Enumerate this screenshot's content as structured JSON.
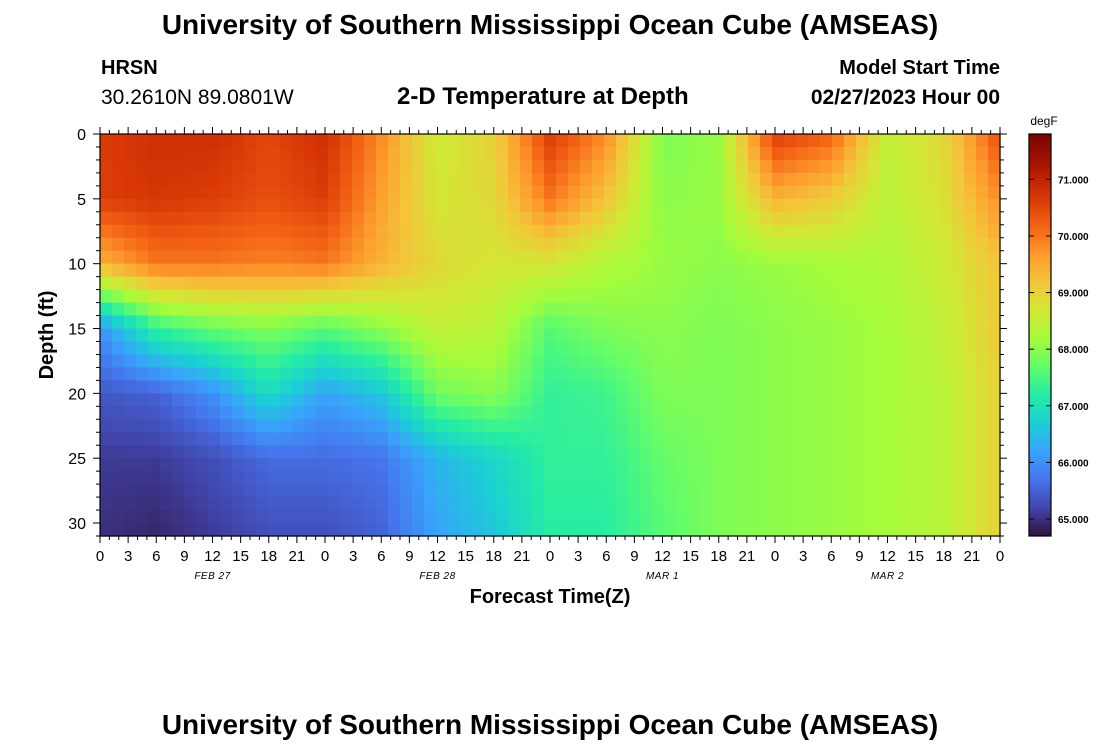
{
  "header": {
    "title": "University of Southern Mississippi Ocean Cube (AMSEAS)",
    "station": "HRSN",
    "coords": "30.2610N  89.0801W",
    "chart_title": "2-D Temperature at Depth",
    "model_label": "Model Start Time",
    "model_time": "02/27/2023 Hour 00"
  },
  "footer": {
    "title": "University of Southern Mississippi Ocean Cube (AMSEAS)"
  },
  "chart_data": {
    "type": "heatmap",
    "title": "2-D Temperature at Depth",
    "xlabel": "Forecast Time(Z)",
    "ylabel": "Depth (ft)",
    "units": "degF",
    "x_range_hours": [
      0,
      96
    ],
    "y_range_ft": [
      0,
      31
    ],
    "x_tick_labels": [
      "0",
      "3",
      "6",
      "9",
      "12",
      "15",
      "18",
      "21",
      "0",
      "3",
      "6",
      "9",
      "12",
      "15",
      "18",
      "21",
      "0",
      "3",
      "6",
      "9",
      "12",
      "15",
      "18",
      "21",
      "0",
      "3",
      "6",
      "9",
      "12",
      "15",
      "18",
      "21",
      "0"
    ],
    "y_tick_labels": [
      "0",
      "5",
      "10",
      "15",
      "20",
      "25",
      "30"
    ],
    "date_labels": [
      {
        "label": "FEB 27",
        "hour": 12
      },
      {
        "label": "FEB 28",
        "hour": 36
      },
      {
        "label": "MAR 1",
        "hour": 60
      },
      {
        "label": "MAR 2",
        "hour": 84
      }
    ],
    "colorbar": {
      "unit_label": "degF",
      "range": [
        64.7,
        71.8
      ],
      "ticks": [
        "65.000",
        "66.000",
        "67.000",
        "68.000",
        "69.000",
        "70.000",
        "71.000"
      ]
    },
    "hours": [
      0,
      6,
      12,
      18,
      24,
      30,
      36,
      42,
      48,
      54,
      60,
      66,
      72,
      78,
      84,
      90,
      96
    ],
    "depths_ft": [
      0,
      5,
      10,
      15,
      20,
      25,
      31
    ],
    "temperatures": [
      [
        70.6,
        70.8,
        70.8,
        70.5,
        70.8,
        69.8,
        68.6,
        69.0,
        70.6,
        69.8,
        67.9,
        68.1,
        70.6,
        70.2,
        68.5,
        68.9,
        70.4
      ],
      [
        70.6,
        70.7,
        70.6,
        70.4,
        70.6,
        69.6,
        68.7,
        68.9,
        70.0,
        69.2,
        68.0,
        68.1,
        69.4,
        69.1,
        68.4,
        68.8,
        69.8
      ],
      [
        69.4,
        70.0,
        70.0,
        69.9,
        70.0,
        69.4,
        68.9,
        68.7,
        68.7,
        68.3,
        68.1,
        68.0,
        68.1,
        68.2,
        68.3,
        68.6,
        69.2
      ],
      [
        66.0,
        67.3,
        67.7,
        67.9,
        67.6,
        68.0,
        68.5,
        68.4,
        67.6,
        67.9,
        68.0,
        67.9,
        68.0,
        68.1,
        68.2,
        68.5,
        69.1
      ],
      [
        65.4,
        65.5,
        66.0,
        66.9,
        66.2,
        66.6,
        67.8,
        68.0,
        67.3,
        67.4,
        67.9,
        67.9,
        68.0,
        68.1,
        68.2,
        68.4,
        69.0
      ],
      [
        65.1,
        65.1,
        65.3,
        65.6,
        65.6,
        65.7,
        66.4,
        66.8,
        67.3,
        67.3,
        67.7,
        67.9,
        68.0,
        68.1,
        68.2,
        68.4,
        69.0
      ],
      [
        65.0,
        64.9,
        65.1,
        65.3,
        65.3,
        65.5,
        66.2,
        66.6,
        67.2,
        67.2,
        67.6,
        67.9,
        68.0,
        68.1,
        68.2,
        68.4,
        69.0
      ]
    ]
  }
}
